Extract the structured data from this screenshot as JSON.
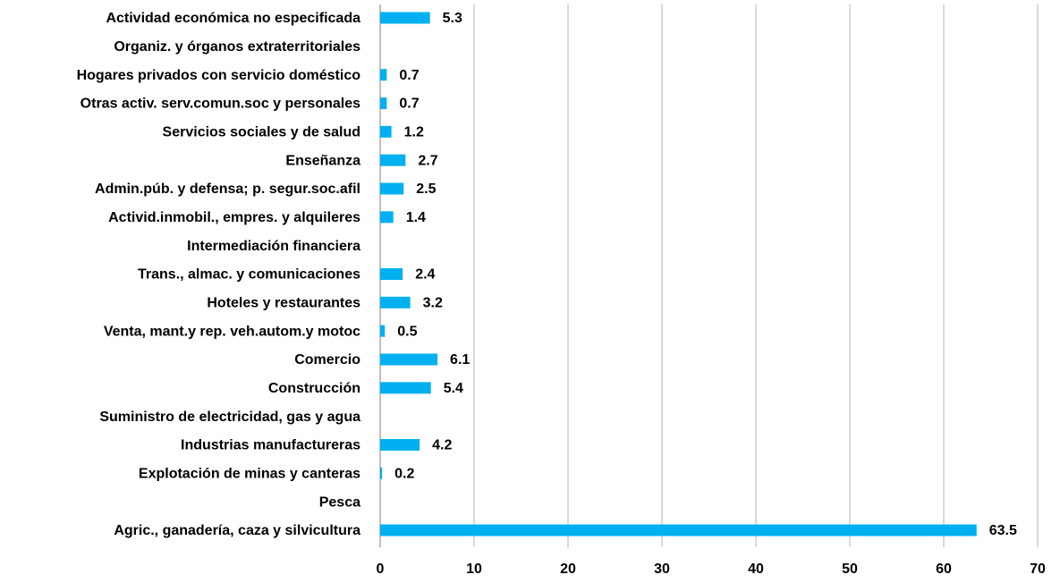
{
  "chart_data": {
    "type": "bar",
    "orientation": "horizontal",
    "categories": [
      "Actividad económica no especificada",
      "Organiz. y órganos extraterritoriales",
      "Hogares privados con servicio doméstico",
      "Otras activ. serv.comun.soc y personales",
      "Servicios sociales y de salud",
      "Enseñanza",
      "Admin.púb. y defensa; p. segur.soc.afil",
      "Activid.inmobil., empres. y alquileres",
      "Intermediación financiera",
      "Trans., almac. y comunicaciones",
      "Hoteles y restaurantes",
      "Venta, mant.y rep. veh.autom.y motoc",
      "Comercio",
      "Construcción",
      "Suministro de electricidad, gas y agua",
      "Industrias manufactureras",
      "Explotación de minas y canteras",
      "Pesca",
      "Agric., ganadería, caza y silvicultura"
    ],
    "values": [
      5.3,
      null,
      0.7,
      0.7,
      1.2,
      2.7,
      2.5,
      1.4,
      null,
      2.4,
      3.2,
      0.5,
      6.1,
      5.4,
      null,
      4.2,
      0.2,
      null,
      63.5
    ],
    "color": "#00b0f0",
    "xlim": [
      0,
      70
    ],
    "xticks": [
      0,
      10,
      20,
      30,
      40,
      50,
      60,
      70
    ],
    "grid": true
  }
}
